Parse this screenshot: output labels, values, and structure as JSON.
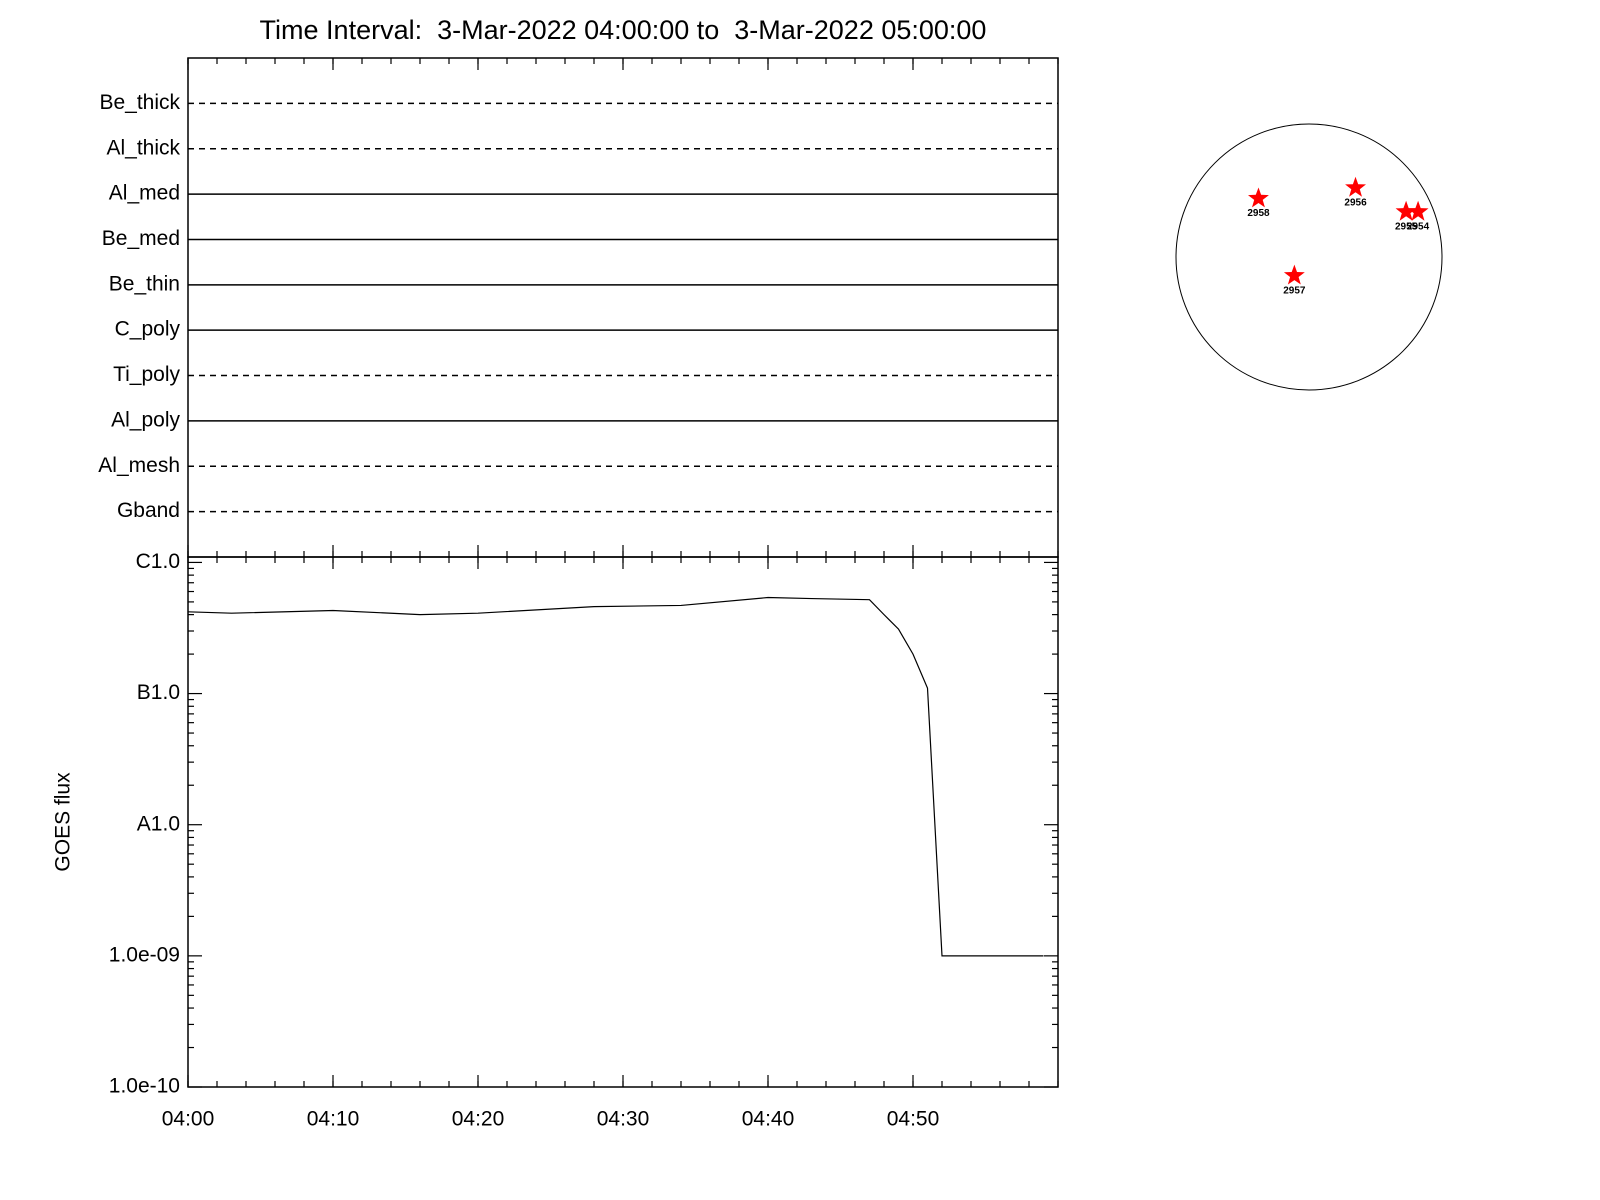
{
  "chart_data": [
    {
      "type": "channels",
      "title": "Time Interval:  3-Mar-2022 04:00:00 to  3-Mar-2022 05:00:00",
      "channels": [
        {
          "name": "Be_thick",
          "style": "dashed"
        },
        {
          "name": "Al_thick",
          "style": "dashed"
        },
        {
          "name": "Al_med",
          "style": "solid"
        },
        {
          "name": "Be_med",
          "style": "solid"
        },
        {
          "name": "Be_thin",
          "style": "solid"
        },
        {
          "name": "C_poly",
          "style": "solid"
        },
        {
          "name": "Ti_poly",
          "style": "dashed"
        },
        {
          "name": "Al_poly",
          "style": "solid"
        },
        {
          "name": "Al_mesh",
          "style": "dashed"
        },
        {
          "name": "Gband",
          "style": "dashed"
        }
      ]
    },
    {
      "type": "line",
      "y_label": "GOES flux",
      "log_scale": true,
      "color": "#000000",
      "x": [
        "04:00",
        "04:03",
        "04:10",
        "04:16",
        "04:20",
        "04:28",
        "04:34",
        "04:40",
        "04:43",
        "04:47",
        "04:48",
        "04:49",
        "04:50",
        "04:51",
        "04:52",
        "04:59"
      ],
      "values": [
        4.2e-07,
        4.1e-07,
        4.3e-07,
        4e-07,
        4.1e-07,
        4.6e-07,
        4.7e-07,
        5.4e-07,
        5.3e-07,
        5.2e-07,
        4e-07,
        3.1e-07,
        2e-07,
        1.1e-07,
        1e-09,
        1e-09
      ],
      "xlim": [
        "04:00",
        "05:00"
      ],
      "xticks": [
        "04:00",
        "04:10",
        "04:20",
        "04:30",
        "04:40",
        "04:50"
      ],
      "ylim": [
        1e-10,
        1.1e-06
      ],
      "yticks": [
        {
          "value": 1e-10,
          "label": "1.0e-10"
        },
        {
          "value": 1e-09,
          "label": "1.0e-09"
        },
        {
          "value": 1e-08,
          "label": "A1.0"
        },
        {
          "value": 1e-07,
          "label": "B1.0"
        },
        {
          "value": 1e-06,
          "label": "C1.0"
        }
      ]
    },
    {
      "type": "scatter",
      "color": "#ff0000",
      "xlim": [
        -1,
        1
      ],
      "ylim": [
        -1,
        1
      ],
      "points": [
        {
          "label": "2958",
          "x": -0.38,
          "y": 0.44
        },
        {
          "label": "2956",
          "x": 0.35,
          "y": 0.52
        },
        {
          "label": "2957",
          "x": -0.11,
          "y": -0.14
        },
        {
          "label": "2955",
          "x": 0.73,
          "y": 0.34
        },
        {
          "label": "2954",
          "x": 0.82,
          "y": 0.34
        }
      ]
    }
  ]
}
